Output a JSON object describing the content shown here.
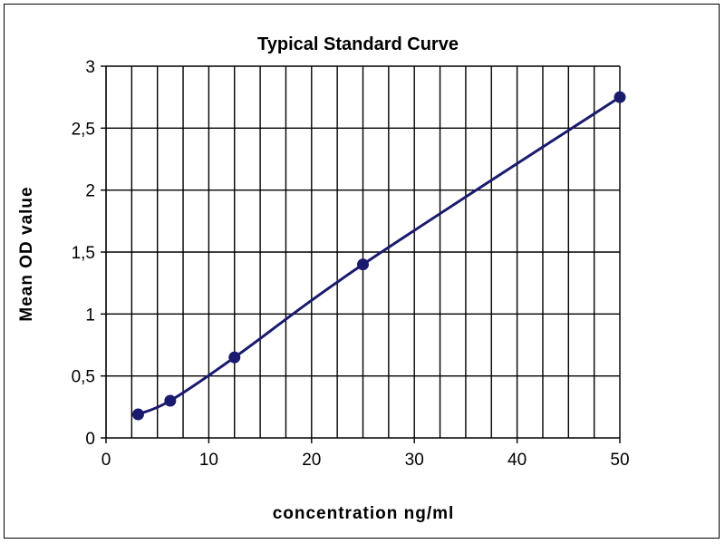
{
  "chart_data": {
    "type": "line",
    "title": "Typical Standard Curve",
    "xlabel": "concentration ng/ml",
    "ylabel": "Mean OD value",
    "xlim": [
      0,
      50
    ],
    "ylim": [
      0,
      3
    ],
    "x_ticks": [
      "0",
      "10",
      "20",
      "30",
      "40",
      "50"
    ],
    "y_ticks": [
      "0",
      "0,5",
      "1",
      "1,5",
      "2",
      "2,5",
      "3"
    ],
    "x_ticks_values": [
      0,
      10,
      20,
      30,
      40,
      50
    ],
    "y_ticks_values": [
      0,
      0.5,
      1,
      1.5,
      2,
      2.5,
      3
    ],
    "vertical_grid_step": 2.5,
    "horizontal_grid_step": 0.5,
    "grid": true,
    "legend": "none",
    "series": [
      {
        "x": [
          3.125,
          6.25,
          12.5,
          25,
          50
        ],
        "y": [
          0.19,
          0.3,
          0.65,
          1.4,
          2.75
        ],
        "color": "#1a1a6e"
      }
    ]
  }
}
